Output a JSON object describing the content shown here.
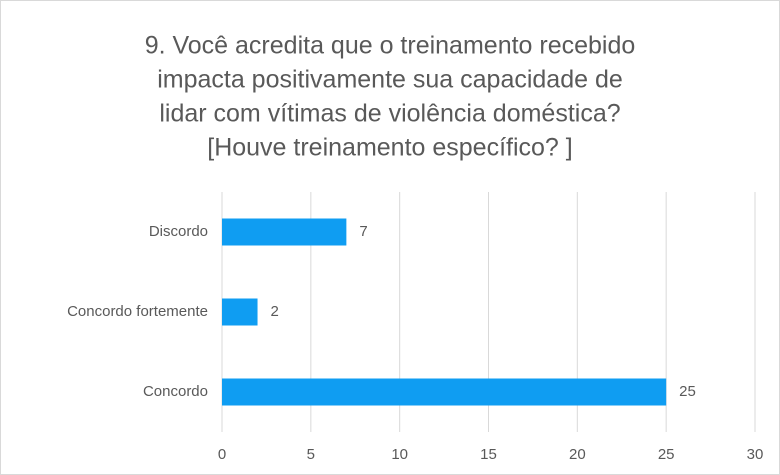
{
  "chart_data": {
    "type": "barh",
    "title": [
      "9. Você acredita que o treinamento recebido",
      "impacta positivamente sua capacidade de",
      "lidar com vítimas de violência doméstica?",
      "[Houve treinamento específico? ]"
    ],
    "categories": [
      "Discordo",
      "Concordo fortemente",
      "Concordo"
    ],
    "values": [
      7,
      2,
      25
    ],
    "color": "#0f9df2",
    "xlim": [
      0,
      30
    ],
    "xticks": [
      0,
      5,
      10,
      15,
      20,
      25,
      30
    ],
    "grid": true
  }
}
